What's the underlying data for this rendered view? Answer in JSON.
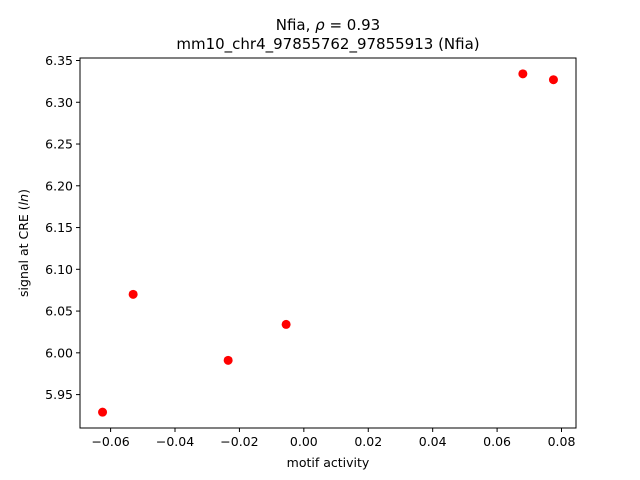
{
  "chart_data": {
    "type": "scatter",
    "title_lines": [
      {
        "prefix": "Nfia, ",
        "symbol": "ρ",
        "suffix": " = 0.93"
      },
      {
        "text": "mm10_chr4_97855762_97855913 (Nfia)"
      }
    ],
    "xlabel": "motif activity",
    "ylabel_prefix": "signal at CRE (",
    "ylabel_italic": "ln",
    "ylabel_suffix": ")",
    "xlim": [
      -0.0695,
      0.0845
    ],
    "ylim": [
      5.91,
      6.353
    ],
    "x_ticks": [
      -0.06,
      -0.04,
      -0.02,
      0.0,
      0.02,
      0.04,
      0.06,
      0.08
    ],
    "x_tick_labels": [
      "−0.06",
      "−0.04",
      "−0.02",
      "0.00",
      "0.02",
      "0.04",
      "0.06",
      "0.08"
    ],
    "y_ticks": [
      5.95,
      6.0,
      6.05,
      6.1,
      6.15,
      6.2,
      6.25,
      6.3,
      6.35
    ],
    "y_tick_labels": [
      "5.95",
      "6.00",
      "6.05",
      "6.10",
      "6.15",
      "6.20",
      "6.25",
      "6.30",
      "6.35"
    ],
    "grid": false,
    "marker_color": "#ff0000",
    "series": [
      {
        "points": [
          {
            "x": -0.0625,
            "y": 5.929
          },
          {
            "x": -0.053,
            "y": 6.07
          },
          {
            "x": -0.0235,
            "y": 5.991
          },
          {
            "x": -0.0055,
            "y": 6.034
          },
          {
            "x": 0.068,
            "y": 6.334
          },
          {
            "x": 0.0775,
            "y": 6.327
          }
        ]
      }
    ]
  }
}
